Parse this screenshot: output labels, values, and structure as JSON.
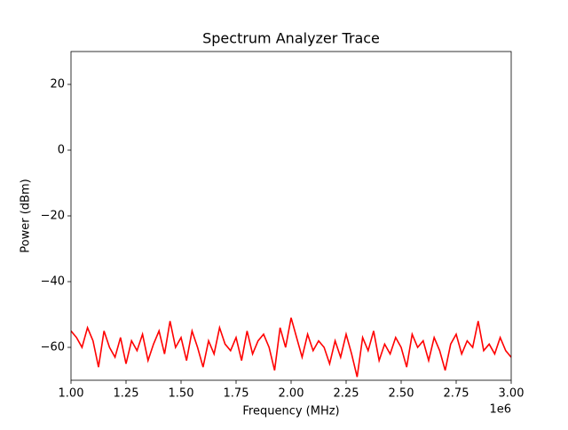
{
  "chart_data": {
    "type": "line",
    "title": "Spectrum Analyzer Trace",
    "x_label": "Frequency (MHz)",
    "y_label": "Power (dBm)",
    "x_offset_label": "1e6",
    "xlim": [
      1000000,
      3000000
    ],
    "xticks": [
      {
        "value": 1000000,
        "label": "1.00"
      },
      {
        "value": 1250000,
        "label": "1.25"
      },
      {
        "value": 1500000,
        "label": "1.50"
      },
      {
        "value": 1750000,
        "label": "1.75"
      },
      {
        "value": 2000000,
        "label": "2.00"
      },
      {
        "value": 2250000,
        "label": "2.25"
      },
      {
        "value": 2500000,
        "label": "2.50"
      },
      {
        "value": 2750000,
        "label": "2.75"
      },
      {
        "value": 3000000,
        "label": "3.00"
      }
    ],
    "ylim": [
      -70,
      30
    ],
    "yticks": [
      {
        "value": -60,
        "label": "−60"
      },
      {
        "value": -40,
        "label": "−40"
      },
      {
        "value": -20,
        "label": "−20"
      },
      0,
      20
    ],
    "series": [
      {
        "color": "#ff0000",
        "x": [
          1000000,
          1025000,
          1050000,
          1075000,
          1100000,
          1125000,
          1150000,
          1175000,
          1200000,
          1225000,
          1250000,
          1275000,
          1300000,
          1325000,
          1350000,
          1375000,
          1400000,
          1425000,
          1450000,
          1475000,
          1500000,
          1525000,
          1550000,
          1575000,
          1600000,
          1625000,
          1650000,
          1675000,
          1700000,
          1725000,
          1750000,
          1775000,
          1800000,
          1825000,
          1850000,
          1875000,
          1900000,
          1925000,
          1950000,
          1975000,
          2000000,
          2025000,
          2050000,
          2075000,
          2100000,
          2125000,
          2150000,
          2175000,
          2200000,
          2225000,
          2250000,
          2275000,
          2300000,
          2325000,
          2350000,
          2375000,
          2400000,
          2425000,
          2450000,
          2475000,
          2500000,
          2525000,
          2550000,
          2575000,
          2600000,
          2625000,
          2650000,
          2675000,
          2700000,
          2725000,
          2750000,
          2775000,
          2800000,
          2825000,
          2850000,
          2875000,
          2900000,
          2925000,
          2950000,
          2975000,
          3000000
        ],
        "values": [
          -55,
          -57,
          -60,
          -54,
          -58,
          -66,
          -55,
          -60,
          -63,
          -57,
          -65,
          -58,
          -61,
          -56,
          -64,
          -59,
          -55,
          -62,
          -52,
          -60,
          -57,
          -64,
          -55,
          -60,
          -66,
          -58,
          -62,
          -54,
          -59,
          -61,
          -57,
          -64,
          -55,
          -62,
          -58,
          -56,
          -60,
          -67,
          -54,
          -60,
          -51,
          -57,
          -63,
          -56,
          -61,
          -58,
          -60,
          -65,
          -58,
          -63,
          -56,
          -62,
          -69,
          -57,
          -61,
          -55,
          -64,
          -59,
          -62,
          -57,
          -60,
          -66,
          -56,
          -60,
          -58,
          -64,
          -57,
          -61,
          -67,
          -59,
          -56,
          -62,
          -58,
          -60,
          -52,
          -61,
          -59,
          -62,
          -57,
          -61,
          -63
        ]
      }
    ]
  }
}
